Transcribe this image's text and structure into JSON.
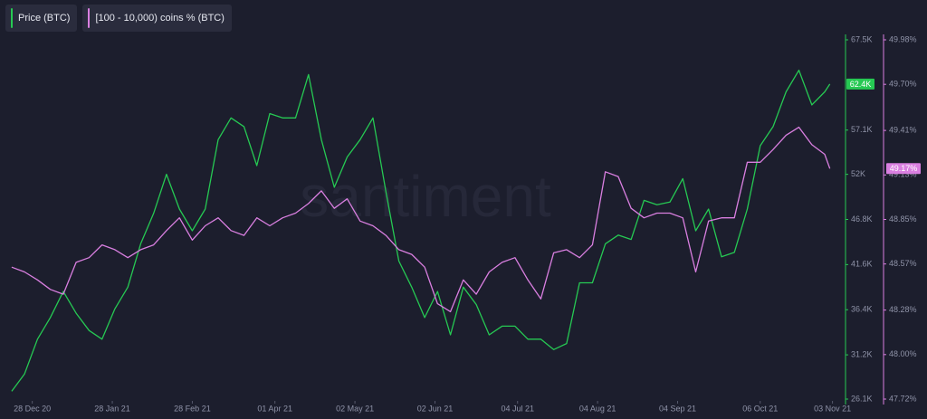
{
  "chart_data": {
    "type": "line",
    "watermark": "santiment",
    "x": [
      "20 Dec 20",
      "25 Dec 20",
      "30 Dec 20",
      "04 Jan 21",
      "09 Jan 21",
      "14 Jan 21",
      "19 Jan 21",
      "24 Jan 21",
      "29 Jan 21",
      "03 Feb 21",
      "08 Feb 21",
      "13 Feb 21",
      "18 Feb 21",
      "23 Feb 21",
      "28 Feb 21",
      "05 Mar 21",
      "10 Mar 21",
      "15 Mar 21",
      "20 Mar 21",
      "25 Mar 21",
      "30 Mar 21",
      "04 Apr 21",
      "09 Apr 21",
      "14 Apr 21",
      "19 Apr 21",
      "24 Apr 21",
      "29 Apr 21",
      "04 May 21",
      "09 May 21",
      "14 May 21",
      "19 May 21",
      "24 May 21",
      "29 May 21",
      "03 Jun 21",
      "08 Jun 21",
      "13 Jun 21",
      "18 Jun 21",
      "23 Jun 21",
      "28 Jun 21",
      "03 Jul 21",
      "08 Jul 21",
      "13 Jul 21",
      "18 Jul 21",
      "23 Jul 21",
      "28 Jul 21",
      "02 Aug 21",
      "07 Aug 21",
      "12 Aug 21",
      "17 Aug 21",
      "22 Aug 21",
      "27 Aug 21",
      "01 Sep 21",
      "06 Sep 21",
      "11 Sep 21",
      "16 Sep 21",
      "21 Sep 21",
      "26 Sep 21",
      "01 Oct 21",
      "06 Oct 21",
      "11 Oct 21",
      "16 Oct 21",
      "21 Oct 21",
      "26 Oct 21",
      "31 Oct 21",
      "02 Nov 21"
    ],
    "xlim": [
      "19 Dec 20",
      "07 Nov 21"
    ],
    "xticks": [
      "28 Dec 20",
      "28 Jan 21",
      "28 Feb 21",
      "01 Apr 21",
      "02 May 21",
      "02 Jun 21",
      "04 Jul 21",
      "04 Aug 21",
      "04 Sep 21",
      "06 Oct 21",
      "03 Nov 21"
    ],
    "series": [
      {
        "name": "Price (BTC)",
        "color": "#26c953",
        "axis": "y",
        "last_value_label": "62.4K",
        "values": [
          27000,
          29000,
          33000,
          35500,
          38500,
          36000,
          34000,
          33000,
          36500,
          39000,
          44000,
          47500,
          52000,
          48000,
          45500,
          48000,
          56000,
          58500,
          57500,
          53000,
          59000,
          58500,
          58500,
          63500,
          56000,
          50500,
          54000,
          56000,
          58500,
          50000,
          42000,
          39000,
          35500,
          38500,
          33500,
          39000,
          37000,
          33500,
          34500,
          34500,
          33000,
          33000,
          31800,
          32500,
          39500,
          39500,
          44000,
          45000,
          44500,
          49000,
          48500,
          48800,
          51500,
          45500,
          48000,
          42500,
          43000,
          48000,
          55300,
          57500,
          61500,
          64000,
          60000,
          61500,
          62400
        ]
      },
      {
        "name": "[100 - 10,000) coins % (BTC)",
        "color": "#d97fe0",
        "axis": "y2",
        "last_value_label": "49.17%",
        "values": [
          48.55,
          48.52,
          48.47,
          48.41,
          48.38,
          48.58,
          48.61,
          48.69,
          48.66,
          48.61,
          48.66,
          48.69,
          48.78,
          48.86,
          48.72,
          48.81,
          48.86,
          48.78,
          48.75,
          48.86,
          48.81,
          48.86,
          48.89,
          48.95,
          49.03,
          48.92,
          48.98,
          48.84,
          48.81,
          48.75,
          48.66,
          48.63,
          48.55,
          48.32,
          48.27,
          48.47,
          48.38,
          48.52,
          48.58,
          48.61,
          48.47,
          48.35,
          48.64,
          48.66,
          48.61,
          48.69,
          49.15,
          49.12,
          48.92,
          48.86,
          48.89,
          48.89,
          48.86,
          48.52,
          48.84,
          48.86,
          48.86,
          49.21,
          49.21,
          49.29,
          49.38,
          49.43,
          49.32,
          49.26,
          49.17
        ]
      }
    ],
    "ylim": [
      26100,
      67500
    ],
    "yticks": [
      {
        "value": 67500,
        "label": "67.5K"
      },
      {
        "value": 57100,
        "label": "57.1K"
      },
      {
        "value": 52000,
        "label": "52K"
      },
      {
        "value": 46800,
        "label": "46.8K"
      },
      {
        "value": 41600,
        "label": "41.6K"
      },
      {
        "value": 36400,
        "label": "36.4K"
      },
      {
        "value": 31200,
        "label": "31.2K"
      },
      {
        "value": 26100,
        "label": "26.1K"
      }
    ],
    "y2lim": [
      47.72,
      49.98
    ],
    "y2ticks": [
      {
        "value": 49.98,
        "label": "49.98%"
      },
      {
        "value": 49.7,
        "label": "49.70%"
      },
      {
        "value": 49.41,
        "label": "49.41%"
      },
      {
        "value": 49.13,
        "label": "49.13%"
      },
      {
        "value": 48.85,
        "label": "48.85%"
      },
      {
        "value": 48.57,
        "label": "48.57%"
      },
      {
        "value": 48.28,
        "label": "48.28%"
      },
      {
        "value": 48.0,
        "label": "48.00%"
      },
      {
        "value": 47.72,
        "label": "47.72%"
      }
    ]
  }
}
